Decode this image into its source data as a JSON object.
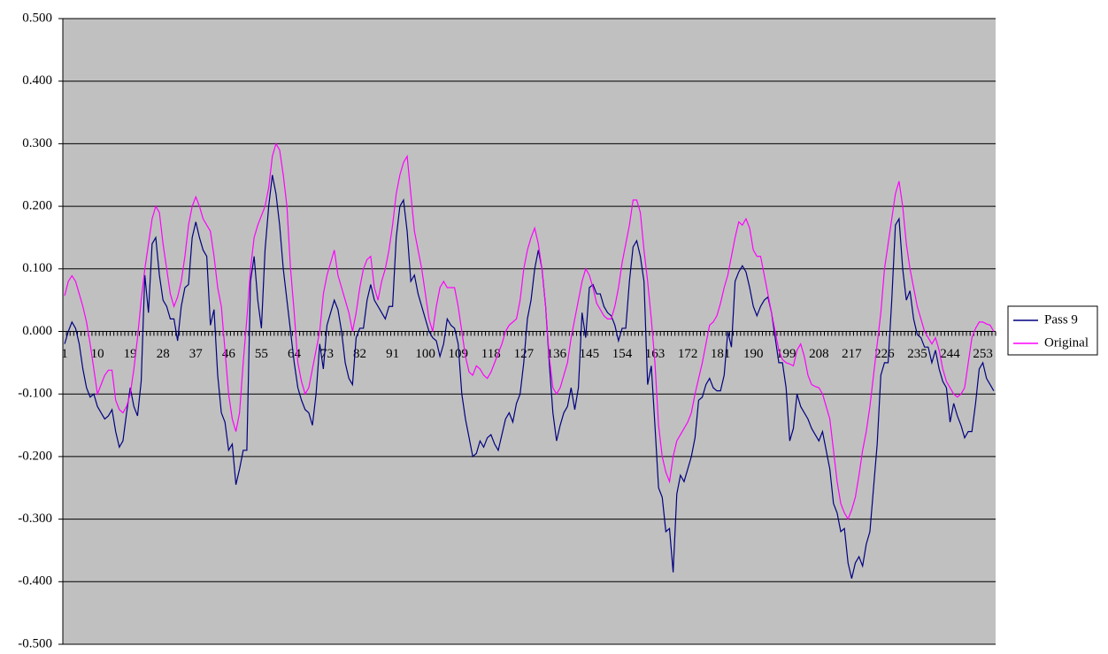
{
  "chart_data": {
    "type": "line",
    "categories": [
      1,
      null,
      null,
      null,
      null,
      null,
      null,
      null,
      null,
      10,
      null,
      null,
      null,
      null,
      null,
      null,
      null,
      null,
      19,
      null,
      null,
      null,
      null,
      null,
      null,
      null,
      null,
      28,
      null,
      null,
      null,
      null,
      null,
      null,
      null,
      null,
      37,
      null,
      null,
      null,
      null,
      null,
      null,
      null,
      null,
      46,
      null,
      null,
      null,
      null,
      null,
      null,
      null,
      null,
      55,
      null,
      null,
      null,
      null,
      null,
      null,
      null,
      null,
      64,
      null,
      null,
      null,
      null,
      null,
      null,
      null,
      null,
      73,
      null,
      null,
      null,
      null,
      null,
      null,
      null,
      null,
      82,
      null,
      null,
      null,
      null,
      null,
      null,
      null,
      null,
      91,
      null,
      null,
      null,
      null,
      null,
      null,
      null,
      null,
      100,
      null,
      null,
      null,
      null,
      null,
      null,
      null,
      null,
      109,
      null,
      null,
      null,
      null,
      null,
      null,
      null,
      null,
      118,
      null,
      null,
      null,
      null,
      null,
      null,
      null,
      null,
      127,
      null,
      null,
      null,
      null,
      null,
      null,
      null,
      null,
      136,
      null,
      null,
      null,
      null,
      null,
      null,
      null,
      null,
      145,
      null,
      null,
      null,
      null,
      null,
      null,
      null,
      null,
      154,
      null,
      null,
      null,
      null,
      null,
      null,
      null,
      null,
      163,
      null,
      null,
      null,
      null,
      null,
      null,
      null,
      null,
      172,
      null,
      null,
      null,
      null,
      null,
      null,
      null,
      null,
      181,
      null,
      null,
      null,
      null,
      null,
      null,
      null,
      null,
      190,
      null,
      null,
      null,
      null,
      null,
      null,
      null,
      null,
      199,
      null,
      null,
      null,
      null,
      null,
      null,
      null,
      null,
      208,
      null,
      null,
      null,
      null,
      null,
      null,
      null,
      null,
      217,
      null,
      null,
      null,
      null,
      null,
      null,
      null,
      null,
      226,
      null,
      null,
      null,
      null,
      null,
      null,
      null,
      null,
      235,
      null,
      null,
      null,
      null,
      null,
      null,
      null,
      null,
      244,
      null,
      null,
      null,
      null,
      null,
      null,
      null,
      null,
      253,
      null,
      null,
      null
    ],
    "series": [
      {
        "name": "Pass 9",
        "color": "#000080",
        "values": [
          -0.02,
          0.0,
          0.015,
          0.005,
          -0.02,
          -0.06,
          -0.09,
          -0.105,
          -0.1,
          -0.12,
          -0.13,
          -0.14,
          -0.135,
          -0.125,
          -0.16,
          -0.185,
          -0.175,
          -0.13,
          -0.09,
          -0.12,
          -0.135,
          -0.08,
          0.09,
          0.03,
          0.14,
          0.15,
          0.09,
          0.05,
          0.04,
          0.02,
          0.02,
          -0.015,
          0.04,
          0.07,
          0.075,
          0.15,
          0.175,
          0.15,
          0.13,
          0.12,
          0.01,
          0.035,
          -0.07,
          -0.13,
          -0.145,
          -0.19,
          -0.18,
          -0.245,
          -0.22,
          -0.19,
          -0.19,
          0.08,
          0.12,
          0.05,
          0.005,
          0.13,
          0.2,
          0.25,
          0.22,
          0.17,
          0.1,
          0.05,
          0.0,
          -0.05,
          -0.09,
          -0.11,
          -0.125,
          -0.13,
          -0.15,
          -0.1,
          -0.02,
          -0.06,
          0.01,
          0.03,
          0.05,
          0.035,
          0.0,
          -0.05,
          -0.075,
          -0.085,
          -0.01,
          0.005,
          0.005,
          0.05,
          0.075,
          0.05,
          0.04,
          0.03,
          0.02,
          0.04,
          0.04,
          0.15,
          0.2,
          0.21,
          0.16,
          0.08,
          0.09,
          0.06,
          0.04,
          0.02,
          0.0,
          -0.01,
          -0.015,
          -0.04,
          -0.02,
          0.02,
          0.01,
          0.005,
          -0.02,
          -0.1,
          -0.14,
          -0.17,
          -0.2,
          -0.195,
          -0.175,
          -0.185,
          -0.17,
          -0.165,
          -0.18,
          -0.19,
          -0.165,
          -0.14,
          -0.13,
          -0.145,
          -0.115,
          -0.1,
          -0.05,
          0.02,
          0.05,
          0.1,
          0.13,
          0.1,
          0.04,
          -0.05,
          -0.13,
          -0.175,
          -0.15,
          -0.13,
          -0.12,
          -0.09,
          -0.125,
          -0.09,
          0.03,
          -0.01,
          0.07,
          0.075,
          0.06,
          0.06,
          0.04,
          0.03,
          0.025,
          0.01,
          -0.015,
          0.005,
          0.005,
          0.08,
          0.135,
          0.145,
          0.12,
          0.08,
          -0.085,
          -0.055,
          -0.15,
          -0.25,
          -0.265,
          -0.32,
          -0.315,
          -0.385,
          -0.26,
          -0.23,
          -0.24,
          -0.22,
          -0.2,
          -0.17,
          -0.11,
          -0.105,
          -0.085,
          -0.075,
          -0.09,
          -0.095,
          -0.095,
          -0.07,
          0.0,
          -0.025,
          0.08,
          0.095,
          0.105,
          0.095,
          0.07,
          0.04,
          0.025,
          0.04,
          0.05,
          0.055,
          0.03,
          -0.01,
          -0.05,
          -0.05,
          -0.09,
          -0.175,
          -0.155,
          -0.1,
          -0.12,
          -0.13,
          -0.14,
          -0.155,
          -0.165,
          -0.175,
          -0.16,
          -0.19,
          -0.22,
          -0.275,
          -0.29,
          -0.32,
          -0.315,
          -0.37,
          -0.395,
          -0.37,
          -0.36,
          -0.375,
          -0.34,
          -0.32,
          -0.25,
          -0.18,
          -0.07,
          -0.05,
          -0.05,
          0.05,
          0.17,
          0.18,
          0.1,
          0.05,
          0.065,
          0.02,
          -0.005,
          -0.01,
          -0.025,
          -0.025,
          -0.05,
          -0.03,
          -0.06,
          -0.08,
          -0.09,
          -0.145,
          -0.115,
          -0.135,
          -0.15,
          -0.17,
          -0.16,
          -0.16,
          -0.115,
          -0.06,
          -0.05,
          -0.075,
          -0.085,
          -0.095
        ]
      },
      {
        "name": "Original",
        "color": "#ff00ff",
        "values": [
          0.057,
          0.08,
          0.089,
          0.08,
          0.06,
          0.04,
          0.015,
          -0.02,
          -0.06,
          -0.1,
          -0.085,
          -0.07,
          -0.062,
          -0.062,
          -0.11,
          -0.125,
          -0.13,
          -0.12,
          -0.1,
          -0.06,
          -0.01,
          0.05,
          0.1,
          0.14,
          0.18,
          0.2,
          0.19,
          0.14,
          0.1,
          0.06,
          0.04,
          0.055,
          0.08,
          0.12,
          0.17,
          0.2,
          0.215,
          0.2,
          0.18,
          0.17,
          0.16,
          0.12,
          0.07,
          0.04,
          -0.03,
          -0.1,
          -0.14,
          -0.16,
          -0.13,
          -0.05,
          0.02,
          0.1,
          0.15,
          0.17,
          0.185,
          0.2,
          0.23,
          0.28,
          0.3,
          0.29,
          0.25,
          0.2,
          0.1,
          0.03,
          -0.05,
          -0.08,
          -0.1,
          -0.09,
          -0.06,
          -0.03,
          0.0,
          0.06,
          0.09,
          0.11,
          0.13,
          0.09,
          0.07,
          0.05,
          0.03,
          0.0,
          0.03,
          0.07,
          0.1,
          0.115,
          0.12,
          0.07,
          0.05,
          0.08,
          0.1,
          0.13,
          0.17,
          0.22,
          0.25,
          0.27,
          0.28,
          0.22,
          0.16,
          0.13,
          0.1,
          0.06,
          0.02,
          0.0,
          0.04,
          0.07,
          0.08,
          0.07,
          0.07,
          0.07,
          0.04,
          0.0,
          -0.04,
          -0.065,
          -0.07,
          -0.055,
          -0.06,
          -0.07,
          -0.075,
          -0.065,
          -0.05,
          -0.035,
          -0.02,
          0.0,
          0.01,
          0.015,
          0.02,
          0.05,
          0.1,
          0.13,
          0.15,
          0.165,
          0.14,
          0.1,
          0.04,
          -0.04,
          -0.09,
          -0.1,
          -0.09,
          -0.07,
          -0.05,
          -0.01,
          0.02,
          0.05,
          0.08,
          0.1,
          0.09,
          0.07,
          0.045,
          0.035,
          0.025,
          0.02,
          0.02,
          0.04,
          0.07,
          0.11,
          0.14,
          0.17,
          0.21,
          0.21,
          0.19,
          0.13,
          0.08,
          0.02,
          -0.05,
          -0.15,
          -0.2,
          -0.225,
          -0.24,
          -0.2,
          -0.175,
          -0.165,
          -0.155,
          -0.145,
          -0.13,
          -0.1,
          -0.075,
          -0.05,
          -0.02,
          0.01,
          0.015,
          0.025,
          0.045,
          0.07,
          0.09,
          0.12,
          0.15,
          0.175,
          0.17,
          0.18,
          0.165,
          0.13,
          0.12,
          0.12,
          0.09,
          0.06,
          0.03,
          0.0,
          -0.03,
          -0.045,
          -0.05,
          -0.052,
          -0.055,
          -0.03,
          -0.02,
          -0.04,
          -0.07,
          -0.085,
          -0.088,
          -0.09,
          -0.1,
          -0.12,
          -0.14,
          -0.19,
          -0.24,
          -0.275,
          -0.29,
          -0.3,
          -0.285,
          -0.265,
          -0.23,
          -0.19,
          -0.16,
          -0.12,
          -0.07,
          -0.02,
          0.03,
          0.1,
          0.14,
          0.18,
          0.22,
          0.24,
          0.2,
          0.14,
          0.1,
          0.07,
          0.04,
          0.02,
          0.0,
          -0.01,
          -0.02,
          -0.01,
          -0.03,
          -0.06,
          -0.08,
          -0.09,
          -0.1,
          -0.105,
          -0.1,
          -0.09,
          -0.05,
          -0.01,
          0.005,
          0.015,
          0.015,
          0.012,
          0.01,
          0.0
        ]
      }
    ],
    "ylim": [
      -0.5,
      0.5
    ],
    "yticks": [
      {
        "value": -0.5,
        "label": "-0.500"
      },
      {
        "value": -0.4,
        "label": "-0.400"
      },
      {
        "value": -0.3,
        "label": "-0.300"
      },
      {
        "value": -0.2,
        "label": "-0.200"
      },
      {
        "value": -0.1,
        "label": "-0.100"
      },
      {
        "value": 0,
        "label": "0.000"
      },
      {
        "value": 0.1,
        "label": "0.100"
      },
      {
        "value": 0.2,
        "label": "0.200"
      },
      {
        "value": 0.3,
        "label": "0.300"
      },
      {
        "value": 0.4,
        "label": "0.400"
      },
      {
        "value": 0.5,
        "label": "0.500"
      }
    ],
    "grid": true,
    "legend": "right",
    "plot_background": "#c0c0c0"
  }
}
